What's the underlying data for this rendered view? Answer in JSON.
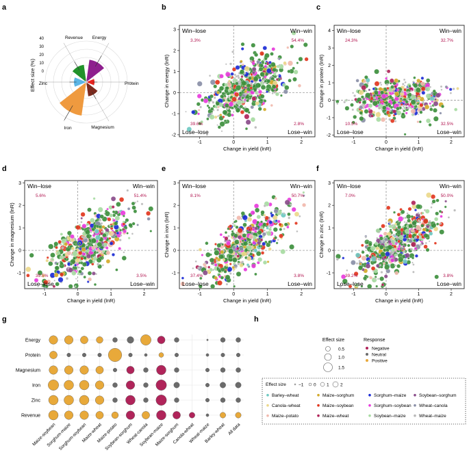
{
  "panels": {
    "a": "a",
    "b": "b",
    "c": "c",
    "d": "d",
    "e": "e",
    "f": "f",
    "g": "g",
    "h": "h"
  },
  "colors": {
    "win_win_pct": "#b0124d",
    "positive": "#e8a93a",
    "negative": "#b0245a",
    "neutral": "#6b6b6b"
  },
  "chart_data": [
    {
      "id": "a",
      "type": "pie",
      "subtype": "radar-bar",
      "ylabel": "Effect size (%)",
      "radial_ticks": [
        "0",
        "10",
        "20",
        "30",
        "40"
      ],
      "rlim": [
        0,
        40
      ],
      "categories": [
        "Energy",
        "Protein",
        "Magnesium",
        "Iron",
        "Zinc",
        "Revenue"
      ],
      "values": [
        22,
        8,
        14,
        33,
        12,
        17
      ],
      "bar_colors": [
        "#8e1f8e",
        "#e8231f",
        "#7b2a1e",
        "#ef9a3f",
        "#5bb5e5",
        "#21922a"
      ]
    },
    {
      "id": "b",
      "type": "scatter",
      "xlabel": "Change in yield (lnR)",
      "ylabel": "Change in energy (lnR)",
      "xlim": [
        -1.6,
        2.4
      ],
      "ylim": [
        -2.1,
        3.2
      ],
      "xticks": [
        "-1",
        "0",
        "1",
        "2"
      ],
      "yticks": [
        "-2",
        "-1",
        "0",
        "1",
        "2",
        "3"
      ],
      "quadrants": {
        "win_lose": "Win–lose",
        "win_win": "Win–win",
        "lose_lose": "Lose–lose",
        "lose_win": "Lose–win"
      },
      "percents": {
        "win_lose": "3.3%",
        "win_win": "54.4%",
        "lose_lose": "39.6%",
        "lose_win": "2.8%"
      }
    },
    {
      "id": "c",
      "type": "scatter",
      "xlabel": "Change in yield (lnR)",
      "ylabel": "Change in protein (lnR)",
      "xlim": [
        -1.6,
        2.4
      ],
      "ylim": [
        -2.1,
        4.3
      ],
      "xticks": [
        "-1",
        "0",
        "1",
        "2"
      ],
      "yticks": [
        "-2",
        "-1",
        "0",
        "1",
        "2",
        "3",
        "4"
      ],
      "quadrants": {
        "win_lose": "Win–lose",
        "win_win": "Win–win",
        "lose_lose": "Lose–lose",
        "lose_win": "Lose–win"
      },
      "percents": {
        "win_lose": "24.3%",
        "win_win": "32.7%",
        "lose_lose": "10.5%",
        "lose_win": "32.5%"
      }
    },
    {
      "id": "d",
      "type": "scatter",
      "xlabel": "Change in yield (lnR)",
      "ylabel": "Change in magnesium (lnR)",
      "xlim": [
        -1.6,
        2.4
      ],
      "ylim": [
        -1.7,
        3.1
      ],
      "xticks": [
        "-1",
        "0",
        "1",
        "2"
      ],
      "yticks": [
        "-1",
        "0",
        "1",
        "2",
        "3"
      ],
      "quadrants": {
        "win_lose": "Win–lose",
        "win_win": "Win–win",
        "lose_lose": "Lose–lose",
        "lose_win": "Lose–win"
      },
      "percents": {
        "win_lose": "5.6%",
        "win_win": "51.4%",
        "lose_lose": "39.5%",
        "lose_win": "3.5%"
      }
    },
    {
      "id": "e",
      "type": "scatter",
      "xlabel": "Change in yield (lnR)",
      "ylabel": "Change in iron (lnR)",
      "xlim": [
        -1.6,
        2.4
      ],
      "ylim": [
        -1.7,
        3.1
      ],
      "xticks": [
        "-1",
        "0",
        "1",
        "2"
      ],
      "yticks": [
        "-1",
        "0",
        "1",
        "2",
        "3"
      ],
      "quadrants": {
        "win_lose": "Win–lose",
        "win_win": "Win–win",
        "lose_lose": "Lose–lose",
        "lose_win": "Lose–win"
      },
      "percents": {
        "win_lose": "8.1%",
        "win_win": "50.7%",
        "lose_lose": "37.4%",
        "lose_win": "3.8%"
      }
    },
    {
      "id": "f",
      "type": "scatter",
      "xlabel": "Change in yield (lnR)",
      "ylabel": "Change in zinc (lnR)",
      "xlim": [
        -1.6,
        2.4
      ],
      "ylim": [
        -1.7,
        3.1
      ],
      "xticks": [
        "-1",
        "0",
        "1",
        "2"
      ],
      "yticks": [
        "-1",
        "0",
        "1",
        "2",
        "3"
      ],
      "quadrants": {
        "win_lose": "Win–lose",
        "win_win": "Win–win",
        "lose_lose": "Lose–lose",
        "lose_win": "Lose–win"
      },
      "percents": {
        "win_lose": "7.0%",
        "win_win": "50.0%",
        "lose_lose": "39.2%",
        "lose_win": "3.8%"
      }
    },
    {
      "id": "g",
      "type": "heatmap",
      "subtype": "bubble-matrix",
      "rows": [
        "Energy",
        "Protein",
        "Magnesium",
        "Iron",
        "Zinc",
        "Revenue"
      ],
      "columns": [
        "Maize-soybean",
        "Sorghum-maize",
        "Sorghum-soybean",
        "Maize-wheat",
        "Maize-potato",
        "Soybean-sorghum",
        "Wheat-canola",
        "Soybean-maize",
        "Maize-sorghum",
        "Canola-wheat",
        "Wheat-maize",
        "Barley-wheat",
        "All data"
      ],
      "response_codes": {
        "P": "Positive",
        "N": "Negative",
        "U": "Neutral"
      },
      "matrix": [
        [
          "P",
          "P",
          "P",
          "P",
          "U",
          "U",
          "P",
          "N",
          "U",
          "",
          "U",
          "U",
          "U"
        ],
        [
          "P",
          "U",
          "U",
          "U",
          "P",
          "U",
          "U",
          "P",
          "U",
          "",
          "U",
          "U",
          "U"
        ],
        [
          "P",
          "P",
          "P",
          "P",
          "U",
          "N",
          "U",
          "N",
          "U",
          "",
          "U",
          "U",
          "U"
        ],
        [
          "P",
          "P",
          "P",
          "P",
          "U",
          "N",
          "U",
          "N",
          "U",
          "",
          "U",
          "U",
          "U"
        ],
        [
          "P",
          "P",
          "P",
          "P",
          "U",
          "N",
          "U",
          "N",
          "U",
          "",
          "U",
          "U",
          "U"
        ],
        [
          "P",
          "P",
          "P",
          "P",
          "P",
          "N",
          "P",
          "N",
          "N",
          "N",
          "U",
          "P",
          "P"
        ]
      ],
      "sizes": [
        [
          0.9,
          0.9,
          0.8,
          0.7,
          0.5,
          0.7,
          1.1,
          0.8,
          0.5,
          0,
          0.1,
          0.5,
          0.5
        ],
        [
          0.8,
          0.4,
          0.4,
          0.4,
          1.4,
          0.4,
          0.3,
          0.5,
          0.4,
          0,
          0.3,
          0.4,
          0.4
        ],
        [
          0.9,
          0.9,
          0.9,
          0.8,
          0.4,
          0.8,
          0.5,
          1.0,
          0.5,
          0,
          0.4,
          0.5,
          0.5
        ],
        [
          1.1,
          1.0,
          1.0,
          0.9,
          0.5,
          0.9,
          0.5,
          1.1,
          0.6,
          0,
          0.4,
          0.6,
          0.6
        ],
        [
          1.0,
          1.0,
          1.0,
          0.9,
          0.5,
          1.0,
          0.5,
          1.1,
          0.5,
          0,
          0.4,
          0.5,
          0.5
        ],
        [
          1.0,
          0.9,
          0.9,
          0.8,
          0.7,
          0.9,
          0.8,
          1.0,
          0.8,
          0.6,
          0.3,
          0.6,
          0.6
        ]
      ]
    }
  ],
  "legend_h": {
    "effect_size_title": "Effect size",
    "effect_sizes": [
      "0.5",
      "1.0",
      "1.5"
    ],
    "response_title": "Response",
    "responses": [
      {
        "label": "Negative",
        "color": "#b0245a"
      },
      {
        "label": "Neutral",
        "color": "#6b6b6b"
      },
      {
        "label": "Positive",
        "color": "#e8a93a"
      }
    ]
  },
  "legend_main": {
    "title": "Effect size",
    "effect_sizes": [
      "−1",
      "0",
      "1",
      "2"
    ],
    "rotations": [
      {
        "label": "Barley–wheat",
        "color": "#6fc9c2"
      },
      {
        "label": "Maize–sorghum",
        "color": "#d4aa2a"
      },
      {
        "label": "Sorghum–maize",
        "color": "#1c2cd6"
      },
      {
        "label": "Soybean–sorghum",
        "color": "#8a4c8a"
      },
      {
        "label": "Canola–wheat",
        "color": "#ecd88b"
      },
      {
        "label": "Maize–soybean",
        "color": "#e2361e"
      },
      {
        "label": "Sorghum–soybean",
        "color": "#e83bdc"
      },
      {
        "label": "Wheat–canola",
        "color": "#8a8fa7"
      },
      {
        "label": "Maize–potato",
        "color": "#f1b9ad"
      },
      {
        "label": "Maize–wheat",
        "color": "#b0245a"
      },
      {
        "label": "Soybean–maize",
        "color": "#a7dba2"
      },
      {
        "label": "Wheat–maize",
        "color": "#b9b9b9"
      }
    ]
  }
}
